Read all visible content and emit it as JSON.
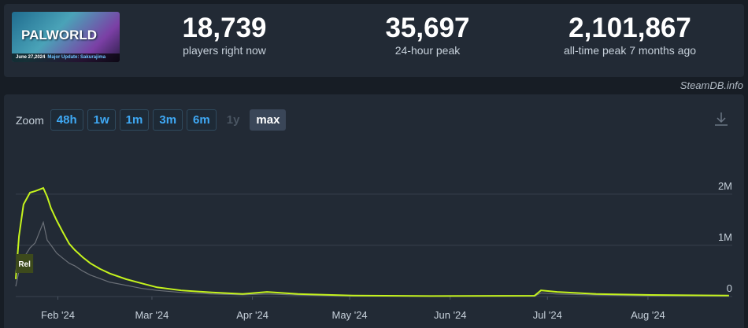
{
  "header": {
    "game_title": "PALWORLD",
    "banner_date": "June 27,2024",
    "banner_update": "Major Update: Sakurajima"
  },
  "stats": [
    {
      "value": "18,739",
      "label": "players right now"
    },
    {
      "value": "35,697",
      "label": "24-hour peak"
    },
    {
      "value": "2,101,867",
      "label": "all-time peak 7 months ago"
    }
  ],
  "source": "SteamDB.info",
  "zoom": {
    "label": "Zoom",
    "buttons": [
      "48h",
      "1w",
      "1m",
      "3m",
      "6m",
      "1y",
      "max"
    ],
    "active": "max",
    "disabled": [
      "1y"
    ]
  },
  "chart_data": {
    "type": "line",
    "x": [
      0,
      1,
      2.4,
      4.4,
      6,
      8.5,
      9.7,
      10.9,
      12.6,
      14.5,
      16.5,
      18.2,
      20.6,
      23,
      26,
      29,
      34,
      38.7,
      43.6,
      51,
      60.5,
      70,
      77.5,
      87,
      104,
      128,
      160,
      162,
      167,
      179,
      196,
      220
    ],
    "series": [
      {
        "color": "#c5f31d",
        "values": [
          340000,
          1180000,
          1800000,
          2030000,
          2060000,
          2120000,
          1950000,
          1720000,
          1490000,
          1260000,
          1030000,
          910000,
          770000,
          650000,
          540000,
          450000,
          340000,
          260000,
          180000,
          120000,
          80000,
          50000,
          90000,
          50000,
          20000,
          10000,
          15000,
          120000,
          90000,
          50000,
          30000,
          19000
        ]
      },
      {
        "color": "#6b7078",
        "values": [
          200000,
          500000,
          750000,
          950000,
          1050000,
          1450000,
          1100000,
          1000000,
          850000,
          750000,
          650000,
          600000,
          500000,
          420000,
          350000,
          280000,
          220000,
          160000,
          120000,
          80000,
          50000,
          35000,
          50000,
          30000,
          12000,
          8000,
          8000,
          70000,
          50000,
          30000,
          15000,
          12000
        ]
      }
    ],
    "xlim": [
      0,
      221
    ],
    "xticks": [
      {
        "value": 13,
        "label": "Feb '24"
      },
      {
        "value": 42,
        "label": "Mar '24"
      },
      {
        "value": 73,
        "label": "Apr '24"
      },
      {
        "value": 103,
        "label": "May '24"
      },
      {
        "value": 134,
        "label": "Jun '24"
      },
      {
        "value": 164,
        "label": "Jul '24"
      },
      {
        "value": 195,
        "label": "Aug '24"
      }
    ],
    "ylim": [
      0,
      2950000
    ],
    "yticks": [
      0,
      {
        "value": 1000000,
        "label": "1M"
      },
      {
        "value": 2000000,
        "label": "2M"
      }
    ],
    "grid": true,
    "annotation": {
      "x": 1,
      "text": "Rel"
    }
  }
}
